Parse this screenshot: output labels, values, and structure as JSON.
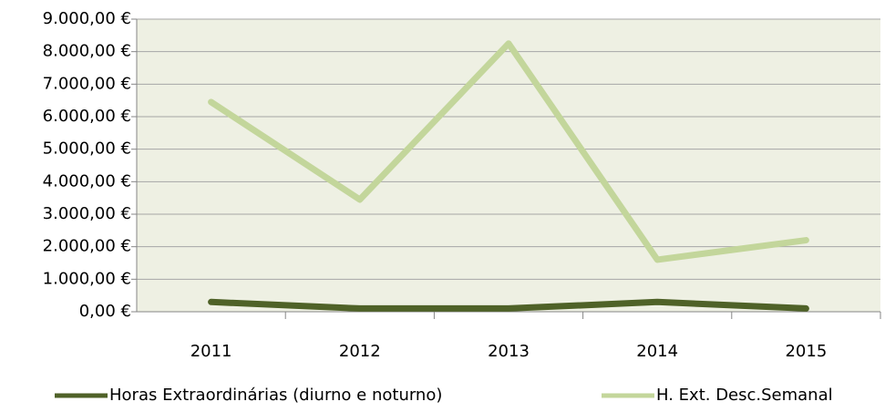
{
  "chart_data": {
    "type": "line",
    "categories": [
      "2011",
      "2012",
      "2013",
      "2014",
      "2015"
    ],
    "series": [
      {
        "name": "Horas Extraordinárias (diurno e noturno)",
        "color": "#4f6228",
        "values": [
          300,
          100,
          100,
          300,
          100
        ]
      },
      {
        "name": "H. Ext. Desc.Semanal",
        "color": "#c3d69b",
        "values": [
          6450,
          3450,
          8250,
          1600,
          2200
        ]
      }
    ],
    "ylim": [
      0,
      9000
    ],
    "yticks": [
      {
        "value": 0,
        "label": "0,00 €"
      },
      {
        "value": 1000,
        "label": "1.000,00 €"
      },
      {
        "value": 2000,
        "label": "2.000,00 €"
      },
      {
        "value": 3000,
        "label": "3.000,00 €"
      },
      {
        "value": 4000,
        "label": "4.000,00 €"
      },
      {
        "value": 5000,
        "label": "5.000,00 €"
      },
      {
        "value": 6000,
        "label": "6.000,00 €"
      },
      {
        "value": 7000,
        "label": "7.000,00 €"
      },
      {
        "value": 8000,
        "label": "8.000,00 €"
      },
      {
        "value": 9000,
        "label": "9.000,00 €"
      }
    ],
    "grid": true,
    "legend": "bottom",
    "plot_background": "#eef0e3"
  }
}
